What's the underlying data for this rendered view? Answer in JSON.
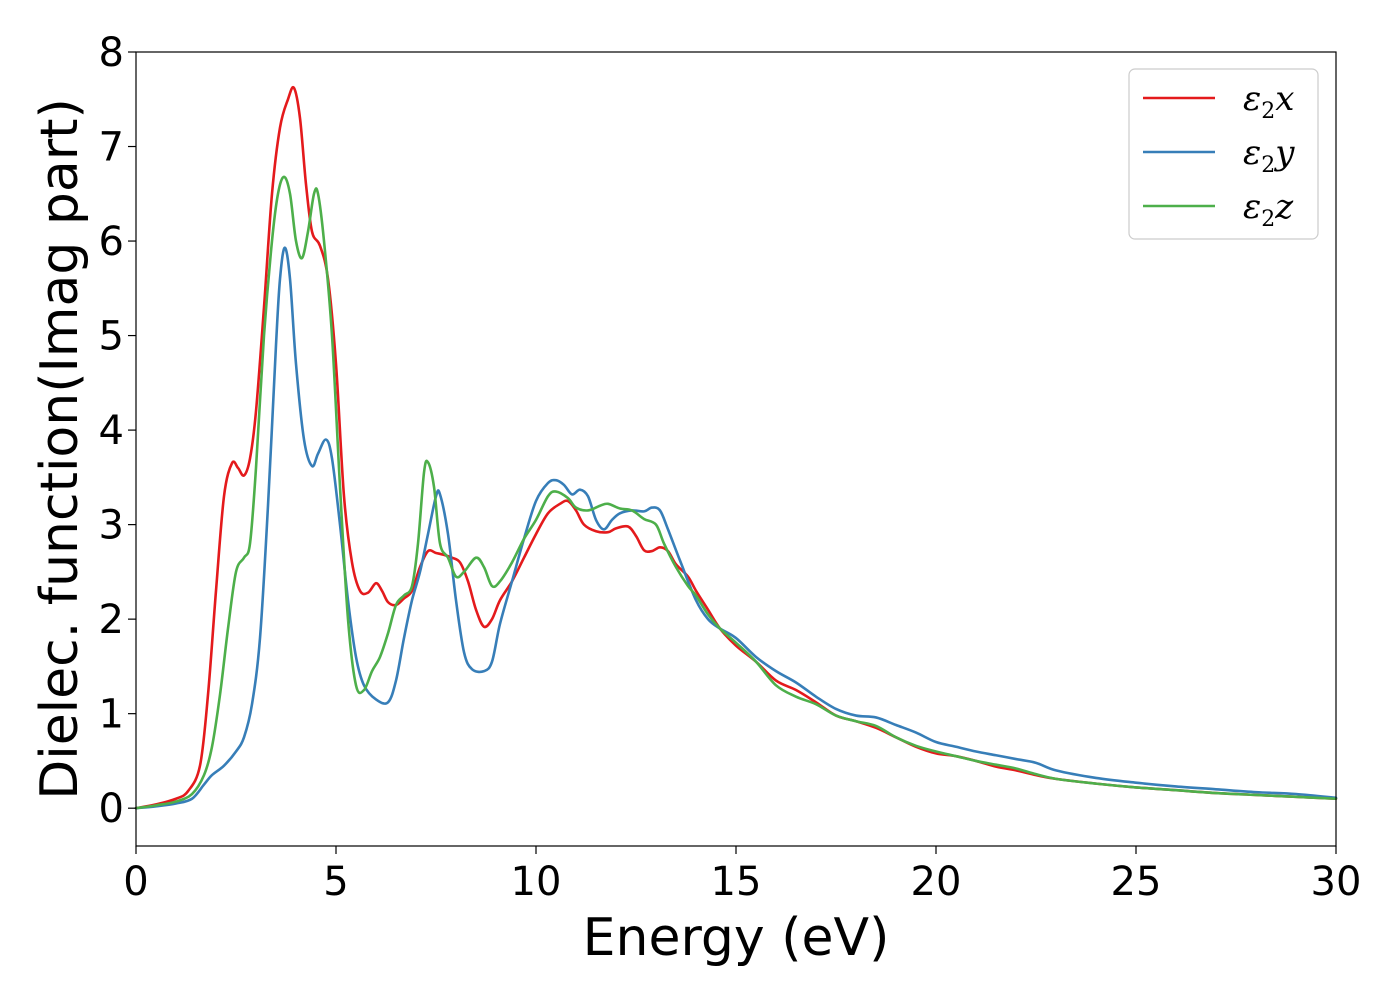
{
  "chart_data": {
    "type": "line",
    "xlabel": "Energy (eV)",
    "ylabel": "Dielec. function(Imag part)",
    "xlim": [
      0,
      30
    ],
    "ylim": [
      -0.4,
      8
    ],
    "xticks": [
      0,
      5,
      10,
      15,
      20,
      25,
      30
    ],
    "yticks": [
      0,
      1,
      2,
      3,
      4,
      5,
      6,
      7,
      8
    ],
    "grid": false,
    "legend_position": "top-right",
    "series": [
      {
        "name": "ε2x",
        "label_base": "ε",
        "label_sub": "2",
        "label_suffix": "x",
        "color": "#e41a1c",
        "points": [
          [
            0,
            0
          ],
          [
            0.5,
            0.04
          ],
          [
            1.0,
            0.1
          ],
          [
            1.3,
            0.18
          ],
          [
            1.6,
            0.45
          ],
          [
            1.8,
            1.2
          ],
          [
            2.0,
            2.3
          ],
          [
            2.2,
            3.3
          ],
          [
            2.4,
            3.65
          ],
          [
            2.55,
            3.6
          ],
          [
            2.7,
            3.52
          ],
          [
            2.85,
            3.7
          ],
          [
            3.0,
            4.2
          ],
          [
            3.2,
            5.3
          ],
          [
            3.4,
            6.5
          ],
          [
            3.6,
            7.2
          ],
          [
            3.8,
            7.5
          ],
          [
            3.95,
            7.62
          ],
          [
            4.1,
            7.3
          ],
          [
            4.25,
            6.6
          ],
          [
            4.4,
            6.1
          ],
          [
            4.6,
            5.95
          ],
          [
            4.8,
            5.6
          ],
          [
            5.0,
            4.7
          ],
          [
            5.2,
            3.3
          ],
          [
            5.4,
            2.6
          ],
          [
            5.6,
            2.3
          ],
          [
            5.8,
            2.28
          ],
          [
            6.0,
            2.38
          ],
          [
            6.15,
            2.3
          ],
          [
            6.3,
            2.18
          ],
          [
            6.5,
            2.15
          ],
          [
            6.7,
            2.22
          ],
          [
            6.9,
            2.3
          ],
          [
            7.1,
            2.55
          ],
          [
            7.3,
            2.72
          ],
          [
            7.5,
            2.7
          ],
          [
            7.7,
            2.68
          ],
          [
            7.9,
            2.65
          ],
          [
            8.1,
            2.6
          ],
          [
            8.3,
            2.4
          ],
          [
            8.5,
            2.1
          ],
          [
            8.7,
            1.92
          ],
          [
            8.9,
            2.0
          ],
          [
            9.1,
            2.2
          ],
          [
            9.4,
            2.4
          ],
          [
            9.7,
            2.65
          ],
          [
            10.0,
            2.9
          ],
          [
            10.3,
            3.12
          ],
          [
            10.6,
            3.22
          ],
          [
            10.8,
            3.25
          ],
          [
            11.0,
            3.15
          ],
          [
            11.2,
            3.0
          ],
          [
            11.5,
            2.93
          ],
          [
            11.8,
            2.92
          ],
          [
            12.0,
            2.96
          ],
          [
            12.3,
            2.98
          ],
          [
            12.5,
            2.88
          ],
          [
            12.7,
            2.73
          ],
          [
            12.9,
            2.72
          ],
          [
            13.1,
            2.76
          ],
          [
            13.3,
            2.72
          ],
          [
            13.5,
            2.58
          ],
          [
            13.8,
            2.45
          ],
          [
            14.0,
            2.3
          ],
          [
            14.3,
            2.1
          ],
          [
            14.6,
            1.9
          ],
          [
            15.0,
            1.72
          ],
          [
            15.5,
            1.55
          ],
          [
            16.0,
            1.35
          ],
          [
            16.5,
            1.25
          ],
          [
            17.0,
            1.12
          ],
          [
            17.5,
            0.98
          ],
          [
            18.0,
            0.92
          ],
          [
            18.5,
            0.85
          ],
          [
            19.0,
            0.75
          ],
          [
            19.5,
            0.65
          ],
          [
            20.0,
            0.58
          ],
          [
            20.5,
            0.55
          ],
          [
            21.0,
            0.5
          ],
          [
            21.5,
            0.44
          ],
          [
            22.0,
            0.4
          ],
          [
            22.5,
            0.35
          ],
          [
            23.0,
            0.31
          ],
          [
            24.0,
            0.26
          ],
          [
            25.0,
            0.22
          ],
          [
            26.0,
            0.19
          ],
          [
            27.0,
            0.16
          ],
          [
            28.0,
            0.14
          ],
          [
            29.0,
            0.12
          ],
          [
            30.0,
            0.1
          ]
        ]
      },
      {
        "name": "ε2y",
        "label_base": "ε",
        "label_sub": "2",
        "label_suffix": "y",
        "color": "#377eb8",
        "points": [
          [
            0,
            0
          ],
          [
            0.5,
            0.02
          ],
          [
            1.0,
            0.05
          ],
          [
            1.4,
            0.1
          ],
          [
            1.7,
            0.25
          ],
          [
            1.9,
            0.35
          ],
          [
            2.2,
            0.45
          ],
          [
            2.5,
            0.6
          ],
          [
            2.7,
            0.75
          ],
          [
            2.9,
            1.1
          ],
          [
            3.1,
            1.8
          ],
          [
            3.3,
            3.2
          ],
          [
            3.5,
            4.9
          ],
          [
            3.6,
            5.6
          ],
          [
            3.72,
            5.93
          ],
          [
            3.85,
            5.6
          ],
          [
            4.0,
            4.7
          ],
          [
            4.2,
            3.9
          ],
          [
            4.4,
            3.62
          ],
          [
            4.55,
            3.75
          ],
          [
            4.75,
            3.9
          ],
          [
            4.9,
            3.7
          ],
          [
            5.1,
            3.0
          ],
          [
            5.3,
            2.2
          ],
          [
            5.5,
            1.6
          ],
          [
            5.7,
            1.3
          ],
          [
            6.0,
            1.15
          ],
          [
            6.3,
            1.12
          ],
          [
            6.5,
            1.35
          ],
          [
            6.7,
            1.8
          ],
          [
            6.9,
            2.2
          ],
          [
            7.1,
            2.5
          ],
          [
            7.3,
            2.9
          ],
          [
            7.5,
            3.3
          ],
          [
            7.6,
            3.32
          ],
          [
            7.8,
            2.9
          ],
          [
            8.0,
            2.2
          ],
          [
            8.2,
            1.65
          ],
          [
            8.4,
            1.47
          ],
          [
            8.7,
            1.45
          ],
          [
            8.9,
            1.55
          ],
          [
            9.1,
            1.95
          ],
          [
            9.4,
            2.4
          ],
          [
            9.7,
            2.85
          ],
          [
            10.0,
            3.25
          ],
          [
            10.3,
            3.44
          ],
          [
            10.5,
            3.47
          ],
          [
            10.7,
            3.42
          ],
          [
            10.9,
            3.32
          ],
          [
            11.1,
            3.37
          ],
          [
            11.3,
            3.3
          ],
          [
            11.5,
            3.05
          ],
          [
            11.7,
            2.95
          ],
          [
            11.9,
            3.05
          ],
          [
            12.1,
            3.12
          ],
          [
            12.4,
            3.15
          ],
          [
            12.7,
            3.14
          ],
          [
            12.9,
            3.18
          ],
          [
            13.1,
            3.15
          ],
          [
            13.3,
            2.95
          ],
          [
            13.6,
            2.62
          ],
          [
            14.0,
            2.2
          ],
          [
            14.3,
            2.0
          ],
          [
            14.6,
            1.9
          ],
          [
            15.0,
            1.8
          ],
          [
            15.5,
            1.6
          ],
          [
            16.0,
            1.45
          ],
          [
            16.5,
            1.33
          ],
          [
            17.0,
            1.18
          ],
          [
            17.5,
            1.05
          ],
          [
            18.0,
            0.98
          ],
          [
            18.5,
            0.96
          ],
          [
            19.0,
            0.88
          ],
          [
            19.5,
            0.8
          ],
          [
            20.0,
            0.7
          ],
          [
            20.5,
            0.65
          ],
          [
            21.0,
            0.6
          ],
          [
            21.5,
            0.56
          ],
          [
            22.0,
            0.52
          ],
          [
            22.5,
            0.48
          ],
          [
            23.0,
            0.4
          ],
          [
            24.0,
            0.32
          ],
          [
            25.0,
            0.27
          ],
          [
            26.0,
            0.23
          ],
          [
            27.0,
            0.2
          ],
          [
            28.0,
            0.17
          ],
          [
            29.0,
            0.15
          ],
          [
            30.0,
            0.11
          ]
        ]
      },
      {
        "name": "ε2z",
        "label_base": "ε",
        "label_sub": "2",
        "label_suffix": "z",
        "color": "#4daf4a",
        "points": [
          [
            0,
            0
          ],
          [
            0.5,
            0.03
          ],
          [
            1.0,
            0.07
          ],
          [
            1.4,
            0.15
          ],
          [
            1.7,
            0.35
          ],
          [
            1.9,
            0.65
          ],
          [
            2.1,
            1.2
          ],
          [
            2.3,
            1.9
          ],
          [
            2.5,
            2.5
          ],
          [
            2.7,
            2.65
          ],
          [
            2.85,
            2.8
          ],
          [
            3.0,
            3.6
          ],
          [
            3.2,
            5.0
          ],
          [
            3.4,
            6.0
          ],
          [
            3.55,
            6.5
          ],
          [
            3.7,
            6.68
          ],
          [
            3.85,
            6.5
          ],
          [
            4.0,
            6.0
          ],
          [
            4.15,
            5.82
          ],
          [
            4.3,
            6.1
          ],
          [
            4.45,
            6.5
          ],
          [
            4.55,
            6.5
          ],
          [
            4.7,
            6.0
          ],
          [
            4.9,
            5.0
          ],
          [
            5.1,
            3.4
          ],
          [
            5.3,
            2.0
          ],
          [
            5.5,
            1.3
          ],
          [
            5.7,
            1.25
          ],
          [
            5.9,
            1.45
          ],
          [
            6.1,
            1.6
          ],
          [
            6.3,
            1.85
          ],
          [
            6.5,
            2.15
          ],
          [
            6.7,
            2.25
          ],
          [
            6.9,
            2.35
          ],
          [
            7.05,
            2.8
          ],
          [
            7.2,
            3.55
          ],
          [
            7.3,
            3.66
          ],
          [
            7.45,
            3.4
          ],
          [
            7.6,
            2.8
          ],
          [
            7.8,
            2.65
          ],
          [
            8.0,
            2.45
          ],
          [
            8.2,
            2.5
          ],
          [
            8.5,
            2.65
          ],
          [
            8.7,
            2.55
          ],
          [
            8.9,
            2.35
          ],
          [
            9.1,
            2.4
          ],
          [
            9.4,
            2.6
          ],
          [
            9.7,
            2.85
          ],
          [
            10.0,
            3.05
          ],
          [
            10.3,
            3.3
          ],
          [
            10.5,
            3.35
          ],
          [
            10.8,
            3.28
          ],
          [
            11.0,
            3.18
          ],
          [
            11.3,
            3.15
          ],
          [
            11.6,
            3.2
          ],
          [
            11.8,
            3.22
          ],
          [
            12.1,
            3.17
          ],
          [
            12.4,
            3.15
          ],
          [
            12.7,
            3.06
          ],
          [
            13.0,
            3.0
          ],
          [
            13.2,
            2.8
          ],
          [
            13.5,
            2.55
          ],
          [
            13.8,
            2.35
          ],
          [
            14.0,
            2.25
          ],
          [
            14.3,
            2.05
          ],
          [
            14.6,
            1.9
          ],
          [
            15.0,
            1.75
          ],
          [
            15.5,
            1.55
          ],
          [
            16.0,
            1.3
          ],
          [
            16.5,
            1.18
          ],
          [
            17.0,
            1.1
          ],
          [
            17.5,
            0.98
          ],
          [
            18.0,
            0.92
          ],
          [
            18.5,
            0.87
          ],
          [
            19.0,
            0.75
          ],
          [
            19.5,
            0.66
          ],
          [
            20.0,
            0.6
          ],
          [
            20.5,
            0.55
          ],
          [
            21.0,
            0.5
          ],
          [
            21.5,
            0.46
          ],
          [
            22.0,
            0.42
          ],
          [
            22.5,
            0.36
          ],
          [
            23.0,
            0.31
          ],
          [
            24.0,
            0.26
          ],
          [
            25.0,
            0.22
          ],
          [
            26.0,
            0.19
          ],
          [
            27.0,
            0.16
          ],
          [
            28.0,
            0.14
          ],
          [
            29.0,
            0.12
          ],
          [
            30.0,
            0.1
          ]
        ]
      }
    ]
  }
}
